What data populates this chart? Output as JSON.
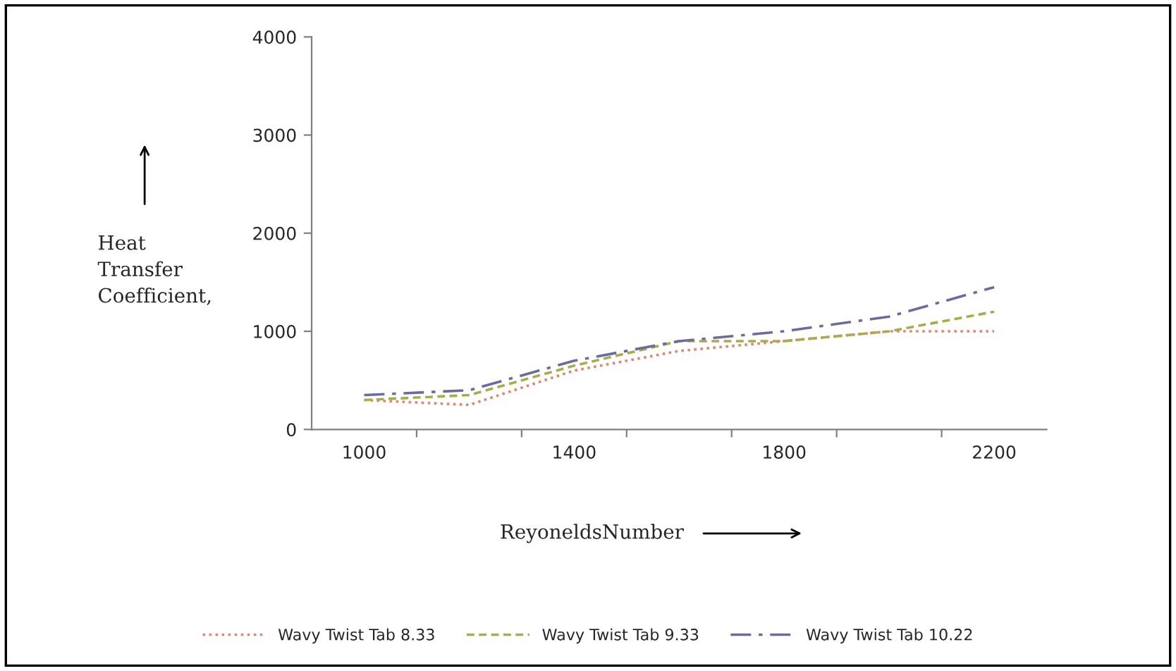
{
  "chart_data": {
    "type": "line",
    "xlabel": "ReyoneldsNumber",
    "ylabel": "Heat Transfer Coefficient,",
    "categories": [
      "1000",
      null,
      "1400",
      null,
      "1800",
      null,
      "2200"
    ],
    "series": [
      {
        "name": "Wavy Twist Tab 8.33",
        "color": "#d98a70",
        "line_style": "dotted",
        "values": [
          300,
          250,
          600,
          800,
          900,
          1000,
          1000
        ]
      },
      {
        "name": "Wavy Twist Tab 9.33",
        "color": "#a6ad4c",
        "line_style": "dashed",
        "values": [
          300,
          350,
          650,
          900,
          900,
          1000,
          1200
        ]
      },
      {
        "name": "Wavy Twist Tab 10.22",
        "color": "#6b6b9e",
        "line_style": "dashdot",
        "values": [
          350,
          400,
          700,
          900,
          1000,
          1150,
          1450
        ]
      }
    ],
    "ylim": [
      0,
      4000
    ],
    "yticks": [
      0,
      1000,
      2000,
      3000,
      4000
    ],
    "grid": false,
    "legend": "bottom"
  }
}
